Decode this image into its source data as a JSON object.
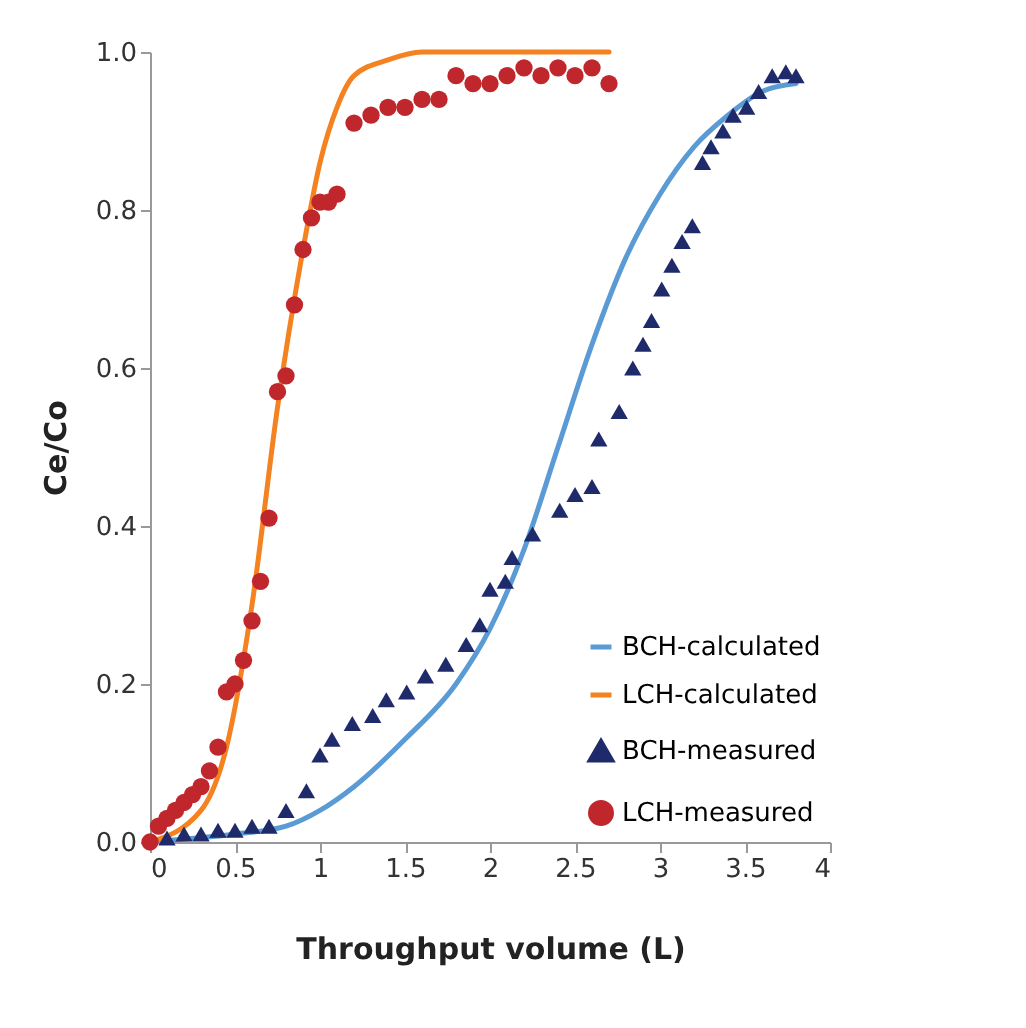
{
  "chart_data": {
    "type": "scatter",
    "xlabel": "Throughput volume (L)",
    "ylabel": "Ce/Co",
    "xlim": [
      0,
      4
    ],
    "ylim": [
      0,
      1
    ],
    "xticks": [
      0,
      0.5,
      1,
      1.5,
      2,
      2.5,
      3,
      3.5,
      4
    ],
    "yticks": [
      {
        "value": 0,
        "label": "0.0"
      },
      0.2,
      0.4,
      0.6,
      0.8,
      {
        "value": 1,
        "label": "1.0"
      }
    ],
    "grid": false,
    "legend": "bottom right",
    "series": [
      {
        "name": "BCH-calculated",
        "type": "line",
        "marker": "none",
        "color": "#5b9bd5",
        "x": [
          0,
          0.5,
          0.8,
          1.0,
          1.2,
          1.5,
          1.8,
          2.0,
          2.2,
          2.4,
          2.6,
          2.8,
          3.0,
          3.2,
          3.4,
          3.6,
          3.8
        ],
        "values": [
          0,
          0.01,
          0.02,
          0.04,
          0.07,
          0.13,
          0.2,
          0.27,
          0.37,
          0.5,
          0.63,
          0.74,
          0.82,
          0.88,
          0.92,
          0.95,
          0.96
        ]
      },
      {
        "name": "LCH-calculated",
        "type": "line",
        "marker": "none",
        "color": "#f58220",
        "x": [
          0,
          0.3,
          0.45,
          0.6,
          0.75,
          0.9,
          1.0,
          1.1,
          1.2,
          1.4,
          1.6,
          2.0,
          2.7
        ],
        "values": [
          0,
          0.04,
          0.12,
          0.3,
          0.55,
          0.75,
          0.86,
          0.93,
          0.97,
          0.99,
          1,
          1,
          1
        ]
      },
      {
        "name": "BCH-measured",
        "marker": "triangle",
        "color": "#1f2a6b",
        "x": [
          0.1,
          0.2,
          0.3,
          0.4,
          0.5,
          0.6,
          0.7,
          0.8,
          0.92,
          1.0,
          1.07,
          1.19,
          1.31,
          1.39,
          1.51,
          1.62,
          1.74,
          1.86,
          1.94,
          2.0,
          2.09,
          2.13,
          2.25,
          2.41,
          2.5,
          2.6,
          2.64,
          2.76,
          2.84,
          2.9,
          2.95,
          3.01,
          3.07,
          3.13,
          3.19,
          3.25,
          3.3,
          3.37,
          3.43,
          3.51,
          3.58,
          3.66,
          3.74,
          3.8
        ],
        "values": [
          0.005,
          0.01,
          0.01,
          0.015,
          0.015,
          0.02,
          0.02,
          0.04,
          0.065,
          0.11,
          0.13,
          0.15,
          0.16,
          0.18,
          0.19,
          0.21,
          0.225,
          0.25,
          0.275,
          0.32,
          0.33,
          0.36,
          0.39,
          0.42,
          0.44,
          0.45,
          0.51,
          0.545,
          0.6,
          0.63,
          0.66,
          0.7,
          0.73,
          0.76,
          0.78,
          0.86,
          0.88,
          0.9,
          0.92,
          0.93,
          0.95,
          0.97,
          0.975,
          0.97
        ]
      },
      {
        "name": "LCH-measured",
        "marker": "circle",
        "color": "#c0272d",
        "x": [
          0,
          0.05,
          0.1,
          0.15,
          0.2,
          0.25,
          0.3,
          0.35,
          0.4,
          0.45,
          0.5,
          0.55,
          0.6,
          0.65,
          0.7,
          0.75,
          0.8,
          0.85,
          0.9,
          0.95,
          1.0,
          1.05,
          1.1,
          1.2,
          1.3,
          1.4,
          1.5,
          1.6,
          1.7,
          1.8,
          1.9,
          2.0,
          2.1,
          2.2,
          2.3,
          2.4,
          2.5,
          2.6,
          2.7
        ],
        "values": [
          0,
          0.02,
          0.03,
          0.04,
          0.05,
          0.06,
          0.07,
          0.09,
          0.12,
          0.19,
          0.2,
          0.23,
          0.28,
          0.33,
          0.41,
          0.57,
          0.59,
          0.68,
          0.75,
          0.79,
          0.81,
          0.81,
          0.82,
          0.91,
          0.92,
          0.93,
          0.93,
          0.94,
          0.94,
          0.97,
          0.96,
          0.96,
          0.97,
          0.98,
          0.97,
          0.98,
          0.97,
          0.98,
          0.96
        ]
      }
    ]
  }
}
